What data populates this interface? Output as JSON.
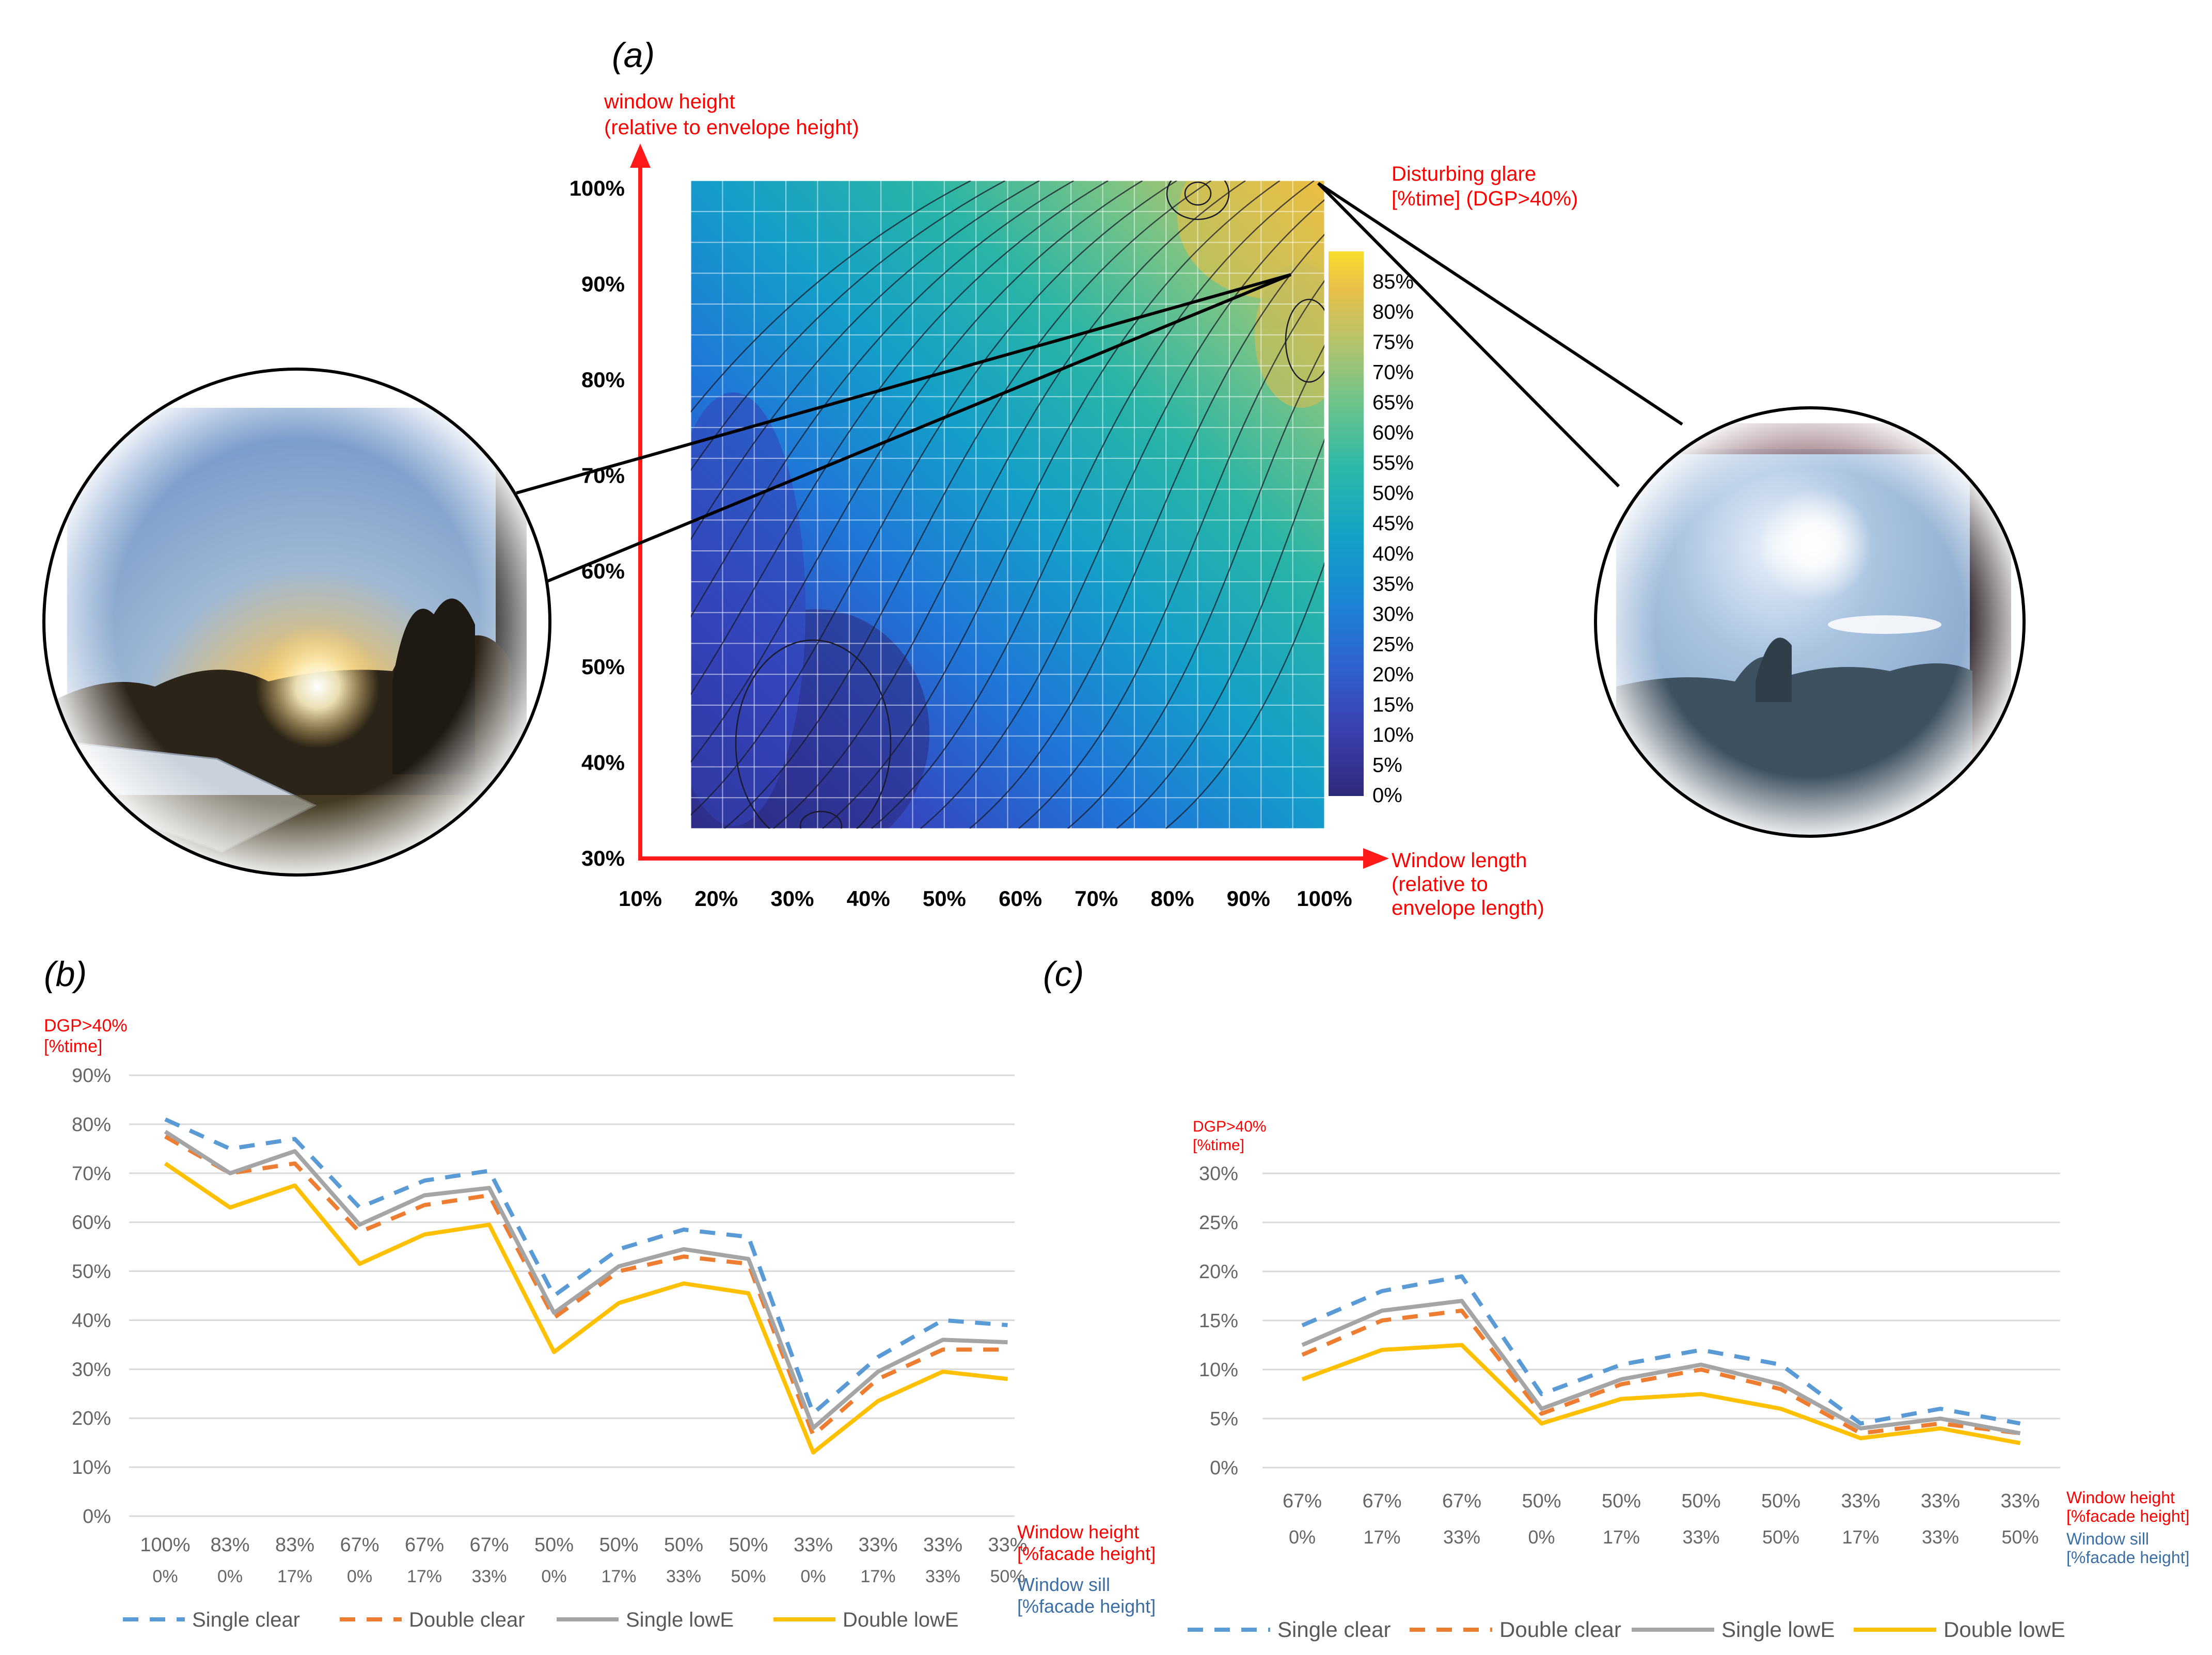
{
  "colors": {
    "red": "#ff0000",
    "axis_red": "#ff1a1a",
    "sill_blue": "#3b6ea5",
    "tick_gray": "#666666",
    "grid": "#d9d9d9",
    "single_clear": "#5b9bd5",
    "double_clear": "#ed7d31",
    "single_lowe": "#a5a5a5",
    "double_lowe": "#ffc000"
  },
  "panel_a": {
    "label": "(a)",
    "y_axis_title_1": "window height",
    "y_axis_title_2": "(relative to envelope height)",
    "x_axis_title_1": "Window length",
    "x_axis_title_2": "(relative to",
    "x_axis_title_3": "envelope length)",
    "colorbar_title_1": "Disturbing glare",
    "colorbar_title_2": "[%time] (DGP>40%)",
    "left_photo": "sunset-glare-photo",
    "right_photo": "midday-sun-glare-photo"
  },
  "panel_b": {
    "label": "(b)"
  },
  "panel_c": {
    "label": "(c)"
  },
  "chart_data": [
    {
      "id": "a",
      "type": "heatmap",
      "title": "",
      "xlabel": "Window length (relative to envelope length)",
      "ylabel": "window height (relative to envelope height)",
      "x_ticks": [
        "10%",
        "20%",
        "30%",
        "40%",
        "50%",
        "60%",
        "70%",
        "80%",
        "90%",
        "100%"
      ],
      "y_ticks": [
        "100%",
        "90%",
        "80%",
        "70%",
        "60%",
        "50%",
        "40%",
        "30%"
      ],
      "xlim": [
        10,
        100
      ],
      "ylim": [
        30,
        100
      ],
      "colorbar_label": "Disturbing glare [%time] (DGP>40%)",
      "colorbar_ticks": [
        "85%",
        "80%",
        "75%",
        "70%",
        "65%",
        "60%",
        "55%",
        "50%",
        "45%",
        "40%",
        "35%",
        "30%",
        "25%",
        "20%",
        "15%",
        "10%",
        "5%",
        "0%"
      ],
      "colorbar_range": [
        0,
        85
      ]
    },
    {
      "id": "b",
      "type": "line",
      "axis_title_1": "DGP>40%",
      "axis_title_2": "[%time]",
      "y_ticks": [
        "90%",
        "80%",
        "70%",
        "60%",
        "50%",
        "40%",
        "30%",
        "20%",
        "10%",
        "0%"
      ],
      "ylim": [
        0,
        90
      ],
      "categories_height": [
        "100%",
        "83%",
        "83%",
        "67%",
        "67%",
        "67%",
        "50%",
        "50%",
        "50%",
        "50%",
        "33%",
        "33%",
        "33%",
        "33%"
      ],
      "categories_sill": [
        "0%",
        "0%",
        "17%",
        "0%",
        "17%",
        "33%",
        "0%",
        "17%",
        "33%",
        "50%",
        "0%",
        "17%",
        "33%",
        "50%"
      ],
      "height_label_1": "Window height",
      "height_label_2": "[%facade height]",
      "sill_label_1": "Window sill",
      "sill_label_2": "[%facade height]",
      "series": [
        {
          "name": "Single clear",
          "values": [
            81,
            75,
            77,
            63,
            68.5,
            70.5,
            45,
            54.5,
            58.5,
            57,
            21,
            32.5,
            40,
            39
          ]
        },
        {
          "name": "Double clear",
          "values": [
            77.5,
            70,
            72,
            58,
            63.5,
            65.5,
            40.5,
            50,
            53,
            51.5,
            16.5,
            28,
            34,
            34
          ]
        },
        {
          "name": "Single lowE",
          "values": [
            78.5,
            70,
            74.5,
            59.5,
            65.5,
            67,
            41.5,
            51,
            54.5,
            52.5,
            18,
            29.5,
            36,
            35.5
          ]
        },
        {
          "name": "Double lowE",
          "values": [
            72,
            63,
            67.5,
            51.5,
            57.5,
            59.5,
            33.5,
            43.5,
            47.5,
            45.5,
            13,
            23.5,
            29.5,
            28
          ]
        }
      ]
    },
    {
      "id": "c",
      "type": "line",
      "axis_title_1": "DGP>40%",
      "axis_title_2": "[%time]",
      "y_ticks": [
        "30%",
        "25%",
        "20%",
        "15%",
        "10%",
        "5%",
        "0%"
      ],
      "ylim": [
        0,
        30
      ],
      "categories_height": [
        "67%",
        "67%",
        "67%",
        "50%",
        "50%",
        "50%",
        "50%",
        "33%",
        "33%",
        "33%"
      ],
      "categories_sill": [
        "0%",
        "17%",
        "33%",
        "0%",
        "17%",
        "33%",
        "50%",
        "17%",
        "33%",
        "50%"
      ],
      "height_label_1": "Window height",
      "height_label_2": "[%facade height]",
      "sill_label_1": "Window sill",
      "sill_label_2": "[%facade height]",
      "series": [
        {
          "name": "Single clear",
          "values": [
            14.5,
            18,
            19.5,
            7.5,
            10.5,
            12,
            10.5,
            4.5,
            6,
            4.5
          ]
        },
        {
          "name": "Double clear",
          "values": [
            11.5,
            15,
            16,
            5.5,
            8.5,
            10,
            8,
            3.5,
            4.5,
            3.5
          ]
        },
        {
          "name": "Single lowE",
          "values": [
            12.5,
            16,
            17,
            6,
            9,
            10.5,
            8.5,
            4,
            5,
            3.5
          ]
        },
        {
          "name": "Double lowE",
          "values": [
            9,
            12,
            12.5,
            4.5,
            7,
            7.5,
            6,
            3,
            4,
            2.5
          ]
        }
      ]
    }
  ]
}
